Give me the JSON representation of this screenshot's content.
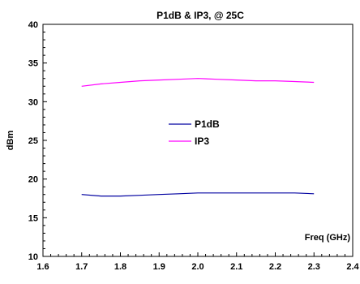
{
  "chart_data": {
    "type": "line",
    "title": "P1dB & IP3, @ 25C",
    "xlabel": "Freq (GHz)",
    "ylabel": "dBm",
    "xlim": [
      1.6,
      2.4
    ],
    "ylim": [
      10,
      40
    ],
    "x_ticks": [
      "1.6",
      "1.7",
      "1.8",
      "1.9",
      "2.0",
      "2.1",
      "2.2",
      "2.3",
      "2.4"
    ],
    "y_ticks": [
      "10",
      "15",
      "20",
      "25",
      "30",
      "35",
      "40"
    ],
    "grid": false,
    "legend_position": "center",
    "series": [
      {
        "name": "P1dB",
        "color": "#0000a0",
        "x": [
          1.7,
          1.75,
          1.8,
          1.85,
          1.9,
          1.95,
          2.0,
          2.05,
          2.1,
          2.15,
          2.2,
          2.25,
          2.3
        ],
        "y": [
          18.0,
          17.8,
          17.8,
          17.9,
          18.0,
          18.1,
          18.2,
          18.2,
          18.2,
          18.2,
          18.2,
          18.2,
          18.1
        ]
      },
      {
        "name": "IP3",
        "color": "#ff00ff",
        "x": [
          1.7,
          1.75,
          1.8,
          1.85,
          1.9,
          1.95,
          2.0,
          2.05,
          2.1,
          2.15,
          2.2,
          2.25,
          2.3
        ],
        "y": [
          32.0,
          32.3,
          32.5,
          32.7,
          32.8,
          32.9,
          33.0,
          32.9,
          32.8,
          32.7,
          32.7,
          32.6,
          32.5
        ]
      }
    ]
  }
}
